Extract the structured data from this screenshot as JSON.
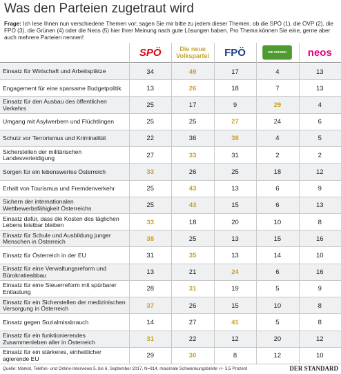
{
  "title": "Was den Parteien zugetraut wird",
  "question": {
    "label": "Frage:",
    "text": "Ich lese Ihnen nun verschiedene Themen vor; sagen Sie mir bitte zu jedem dieser Themen, ob die SPÖ (1), die ÖVP (2), die FPÖ (3), die Grünen (4) oder die Neos (5) hier Ihrer Meinung nach gute Lösungen haben. Pro Thema können Sie eine, gerne aber auch mehrere Parteien nennen!"
  },
  "columns": [
    {
      "name": "SPÖ",
      "color": "#e3000f"
    },
    {
      "name": "Die neue Volkspartei",
      "color": "#c9a227"
    },
    {
      "name": "FPÖ",
      "color": "#1a3e8c"
    },
    {
      "name": "DIE GRÜNEN",
      "color": "#4f9b2f"
    },
    {
      "name": "neos",
      "color": "#e6007e"
    }
  ],
  "rows": [
    {
      "topic": "Einsatz für Wirtschaft und Arbeitsplätze",
      "values": [
        34,
        49,
        17,
        4,
        13
      ]
    },
    {
      "topic": "Engagement für eine sparsame Budgetpolitik",
      "values": [
        13,
        26,
        18,
        7,
        13
      ]
    },
    {
      "topic": "Einsatz für den Ausbau des öffentlichen Verkehrs",
      "values": [
        25,
        17,
        9,
        29,
        4
      ]
    },
    {
      "topic": "Umgang mit Asylwerbern und Flüchtlingen",
      "values": [
        25,
        25,
        27,
        24,
        6
      ]
    },
    {
      "topic": "Schutz vor Terrorismus und Kriminalität",
      "values": [
        22,
        36,
        38,
        4,
        5
      ]
    },
    {
      "topic": "Sicherstellen der militärischen Landesverteidigung",
      "values": [
        27,
        33,
        31,
        2,
        2
      ]
    },
    {
      "topic": "Sorgen für ein lebenswertes Österreich",
      "values": [
        33,
        26,
        25,
        18,
        12
      ]
    },
    {
      "topic": "Erhalt von Tourismus und Fremdenverkehr",
      "values": [
        25,
        43,
        13,
        6,
        9
      ]
    },
    {
      "topic": "Sichern der internationalen Wettbewerbsfähigkeit Österreichs",
      "values": [
        25,
        43,
        15,
        6,
        13
      ]
    },
    {
      "topic": "Einsatz dafür, dass die Kosten des täglichen Lebens leistbar bleiben",
      "values": [
        33,
        18,
        20,
        10,
        8
      ]
    },
    {
      "topic": "Einsatz für Schule und Ausbildung junger Menschen in Österreich",
      "values": [
        38,
        25,
        13,
        15,
        16
      ]
    },
    {
      "topic": "Einsatz für Österreich in der EU",
      "values": [
        31,
        35,
        13,
        14,
        10
      ]
    },
    {
      "topic": "Einsatz für eine Verwaltungsreform und Bürokratieabbau",
      "values": [
        13,
        21,
        24,
        6,
        16
      ]
    },
    {
      "topic": "Einsatz für eine Steuerreform mit spürbarer Entlastung",
      "values": [
        28,
        31,
        19,
        5,
        9
      ]
    },
    {
      "topic": "Einsatz für ein Sicherstellen der medizinischen Versorgung in Österreich",
      "values": [
        37,
        26,
        15,
        10,
        8
      ]
    },
    {
      "topic": "Einsatz gegen Sozialmissbrauch",
      "values": [
        14,
        27,
        41,
        5,
        8
      ]
    },
    {
      "topic": "Einsatz für ein funktionierendes Zusammenleben aller in Österreich",
      "values": [
        31,
        22,
        12,
        20,
        12
      ]
    },
    {
      "topic": "Einsatz für ein stärkeres, einheitlicher agierende EU",
      "values": [
        29,
        30,
        8,
        12,
        10
      ]
    }
  ],
  "source": "Quelle: Market, Telefon- und Online-Interviews 5. bis 6. September 2017, N=814, maximale Schwankungsbreite +/- 3,5 Prozent",
  "brand": "DER STANDARD"
}
